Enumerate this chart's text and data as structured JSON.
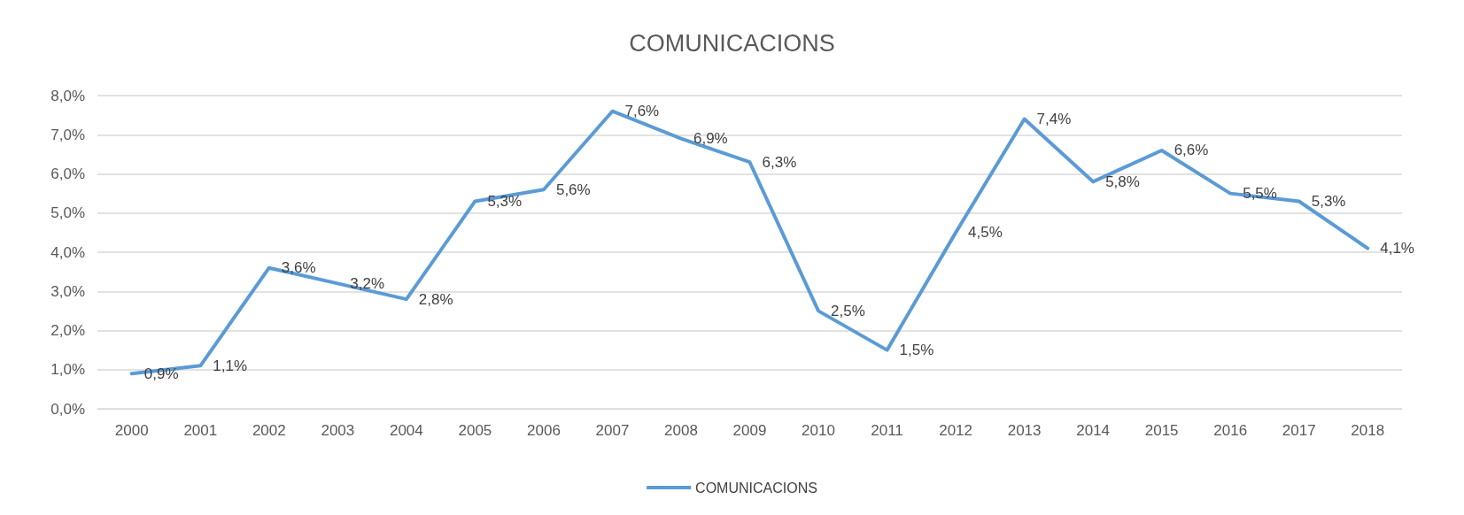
{
  "chart_data": {
    "type": "line",
    "title": "COMUNICACIONS",
    "categories": [
      "2000",
      "2001",
      "2002",
      "2003",
      "2004",
      "2005",
      "2006",
      "2007",
      "2008",
      "2009",
      "2010",
      "2011",
      "2012",
      "2013",
      "2014",
      "2015",
      "2016",
      "2017",
      "2018"
    ],
    "series": [
      {
        "name": "COMUNICACIONS",
        "color": "#5b9bd5",
        "values": [
          0.9,
          1.1,
          3.6,
          3.2,
          2.8,
          5.3,
          5.6,
          7.6,
          6.9,
          6.3,
          2.5,
          1.5,
          4.5,
          7.4,
          5.8,
          6.6,
          5.5,
          5.3,
          4.1
        ],
        "value_labels": [
          "0,9%",
          "1,1%",
          "3,6%",
          "3,2%",
          "2,8%",
          "5,3%",
          "5,6%",
          "7,6%",
          "6,9%",
          "6,3%",
          "2,5%",
          "1,5%",
          "4,5%",
          "7,4%",
          "5,8%",
          "6,6%",
          "5,5%",
          "5,3%",
          "4,1%"
        ]
      }
    ],
    "ylim": [
      0,
      8
    ],
    "yticks": [
      {
        "value": 0,
        "label": "0,0%"
      },
      {
        "value": 1,
        "label": "1,0%"
      },
      {
        "value": 2,
        "label": "2,0%"
      },
      {
        "value": 3,
        "label": "3,0%"
      },
      {
        "value": 4,
        "label": "4,0%"
      },
      {
        "value": 5,
        "label": "5,0%"
      },
      {
        "value": 6,
        "label": "6,0%"
      },
      {
        "value": 7,
        "label": "7,0%"
      },
      {
        "value": 8,
        "label": "8,0%"
      }
    ],
    "grid": "y",
    "legend": "bottom",
    "marker": "none",
    "line_style": "solid"
  }
}
